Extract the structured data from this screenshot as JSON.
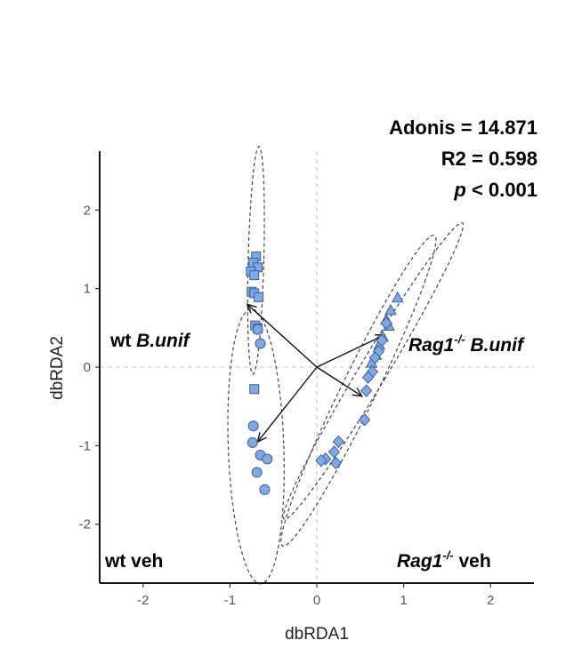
{
  "chart_data": {
    "type": "scatter",
    "xlabel": "dbRDA1",
    "ylabel": "dbRDA2",
    "xlim": [
      -2.5,
      2.5
    ],
    "ylim": [
      -2.75,
      2.75
    ],
    "x_ticks": [
      -2,
      -1,
      0,
      1,
      2
    ],
    "y_ticks": [
      2,
      1,
      0,
      -1,
      -2
    ],
    "reference_lines": {
      "x": 0,
      "y": 0,
      "style": "dashed light grey"
    },
    "marker_color": "#7ea9e8",
    "stats": {
      "adonis": "Adonis = 14.871",
      "r2": "R2 = 0.598",
      "p_symbol": "p",
      "p_rest": " < 0.001"
    },
    "group_labels": {
      "wt_bunif": {
        "plain": "wt ",
        "italic": "B.unif"
      },
      "rag1_bunif": {
        "name": "Rag1",
        "sup": "-/-",
        "rest": " B.unif"
      },
      "wt_veh": {
        "text": "wt veh"
      },
      "rag1_veh": {
        "name": "Rag1",
        "sup": "-/-",
        "rest": " veh"
      }
    },
    "series": [
      {
        "marker": "square",
        "points": [
          [
            -0.7,
            1.41
          ],
          [
            -0.73,
            1.33
          ],
          [
            -0.68,
            1.27
          ],
          [
            -0.76,
            1.22
          ],
          [
            -0.72,
            1.17
          ],
          [
            -0.75,
            0.96
          ],
          [
            -0.72,
            0.94
          ],
          [
            -0.67,
            0.89
          ],
          [
            -0.71,
            0.53
          ],
          [
            -0.68,
            0.49
          ],
          [
            -0.72,
            -0.28
          ]
        ]
      },
      {
        "marker": "circle",
        "points": [
          [
            -0.65,
            0.3
          ],
          [
            -0.68,
            0.48
          ],
          [
            -0.73,
            -0.75
          ],
          [
            -0.74,
            -0.96
          ],
          [
            -0.65,
            -1.12
          ],
          [
            -0.57,
            -1.17
          ],
          [
            -0.69,
            -1.34
          ],
          [
            -0.6,
            -1.56
          ]
        ]
      },
      {
        "marker": "triangle",
        "points": [
          [
            0.93,
            0.88
          ],
          [
            0.85,
            0.72
          ],
          [
            0.8,
            0.6
          ],
          [
            0.83,
            0.52
          ],
          [
            0.76,
            0.38
          ],
          [
            0.72,
            0.28
          ],
          [
            0.68,
            0.15
          ],
          [
            0.63,
            0.05
          ]
        ]
      },
      {
        "marker": "diamond",
        "points": [
          [
            0.8,
            0.56
          ],
          [
            0.75,
            0.34
          ],
          [
            0.71,
            0.2
          ],
          [
            0.67,
            0.12
          ],
          [
            0.64,
            -0.06
          ],
          [
            0.59,
            -0.13
          ],
          [
            0.57,
            -0.3
          ],
          [
            0.55,
            -0.67
          ],
          [
            0.25,
            -0.95
          ],
          [
            0.2,
            -1.08
          ],
          [
            0.1,
            -1.17
          ],
          [
            0.05,
            -1.19
          ],
          [
            0.22,
            -1.22
          ]
        ]
      }
    ],
    "ellipses": [
      {
        "center": [
          -0.7,
          1.36
        ],
        "rx": 0.09,
        "ry": 1.45,
        "angle": 1.5
      },
      {
        "center": [
          -0.7,
          -1.01
        ],
        "rx": 0.32,
        "ry": 1.75,
        "angle": -2
      },
      {
        "center": [
          0.65,
          -0.05
        ],
        "rx": 0.16,
        "ry": 2.2,
        "angle": 31
      },
      {
        "center": [
          0.48,
          -0.3
        ],
        "rx": 0.2,
        "ry": 2.2,
        "angle": 26
      }
    ],
    "arrows": [
      {
        "from": [
          0,
          0
        ],
        "to": [
          -0.8,
          0.8
        ]
      },
      {
        "from": [
          0,
          0
        ],
        "to": [
          -0.68,
          -0.95
        ]
      },
      {
        "from": [
          0,
          0
        ],
        "to": [
          0.78,
          0.41
        ]
      },
      {
        "from": [
          0,
          0
        ],
        "to": [
          0.52,
          -0.37
        ]
      }
    ]
  }
}
